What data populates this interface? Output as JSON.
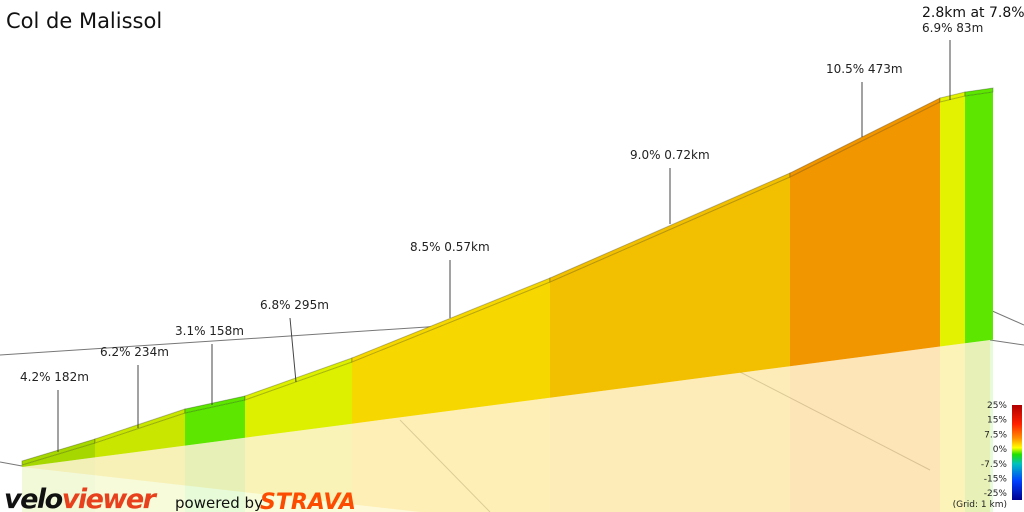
{
  "title": "Col de Malissol",
  "summary": "2.8km at 7.8%",
  "segments": [
    {
      "label": "4.2% 182m",
      "color": "#a6d800"
    },
    {
      "label": "6.2% 234m",
      "color": "#c9e600"
    },
    {
      "label": "3.1% 158m",
      "color": "#5ce600"
    },
    {
      "label": "6.8% 295m",
      "color": "#dcf000"
    },
    {
      "label": "8.5% 0.57km",
      "color": "#f6d800"
    },
    {
      "label": "9.0% 0.72km",
      "color": "#f2c000"
    },
    {
      "label": "10.5% 473m",
      "color": "#f29600"
    },
    {
      "label": "6.9% 83m",
      "color": "#e2f200"
    },
    {
      "label": "",
      "color": "#5ce600"
    }
  ],
  "legend": {
    "ticks": [
      "25%",
      "15%",
      "7.5%",
      "0%",
      "-7.5%",
      "-15%",
      "-25%"
    ],
    "note": "(Grid: 1 km)"
  },
  "footer": {
    "brand_prefix": "velo",
    "brand_suffix": "viewer",
    "powered": "powered by",
    "strava": "STRAVA"
  }
}
